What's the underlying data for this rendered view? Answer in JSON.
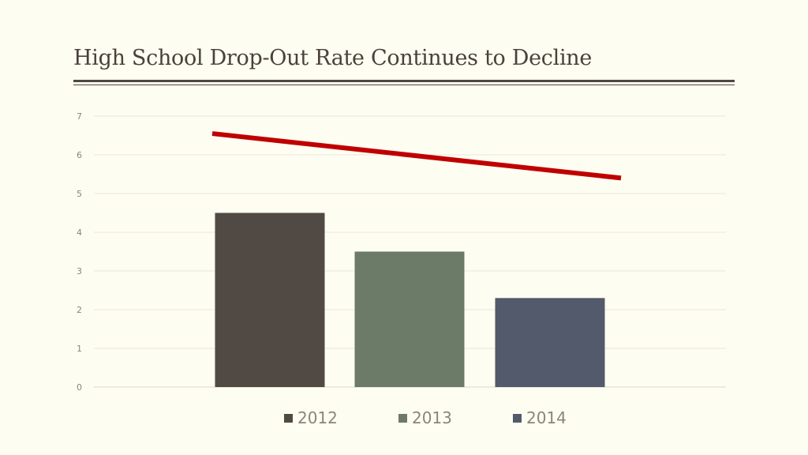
{
  "slide": {
    "title": "High School Drop-Out Rate Continues to Decline"
  },
  "chart_data": {
    "type": "bar",
    "categories": [
      "2012",
      "2013",
      "2014"
    ],
    "values": [
      4.5,
      3.5,
      2.3
    ],
    "bar_colors": [
      "#514a44",
      "#6c7b67",
      "#525a6b"
    ],
    "trend_line": {
      "type": "line",
      "color": "#c00000",
      "start": 6.55,
      "end": 5.4
    },
    "ylim": [
      0,
      7
    ],
    "yticks": [
      "0",
      "1",
      "2",
      "3",
      "4",
      "5",
      "6",
      "7"
    ],
    "grid": true,
    "legend": {
      "position": "bottom",
      "entries": [
        "2012",
        "2013",
        "2014"
      ]
    }
  }
}
